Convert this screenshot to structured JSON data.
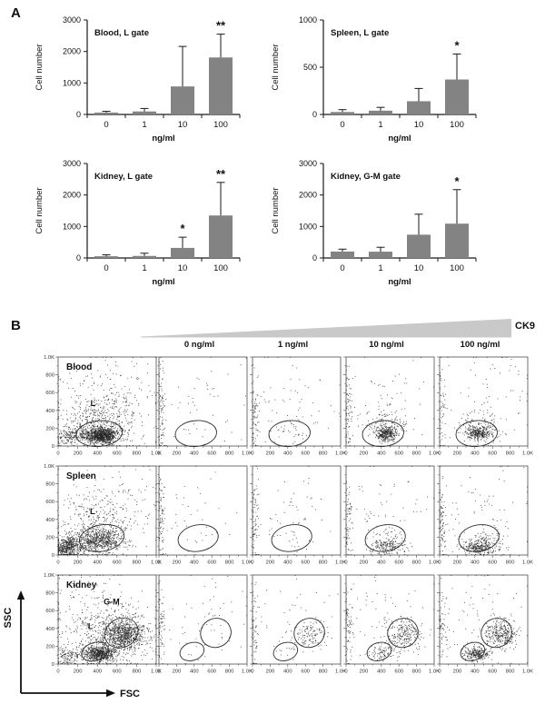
{
  "panel_a": {
    "label": "A"
  },
  "panel_b": {
    "label": "B",
    "gradient_label": "CK9"
  },
  "colors": {
    "bar": "#838383",
    "wedge": "#c9c9c9",
    "dot": "#262626",
    "frame": "#4d4d4d",
    "gate": "#2e2e2e",
    "axis": "#1a1a1a"
  },
  "chart_data": [
    {
      "id": "blood_l_gate",
      "type": "bar",
      "title": "Blood, L gate",
      "categories": [
        "0",
        "1",
        "10",
        "100"
      ],
      "values": [
        60,
        95,
        890,
        1810
      ],
      "errors": [
        40,
        95,
        1270,
        740
      ],
      "significance": [
        "",
        "",
        "",
        "**"
      ],
      "xlabel": "ng/ml",
      "ylabel": "Cell number",
      "ylim": [
        0,
        3000
      ],
      "yticks": [
        0,
        1000,
        2000,
        3000
      ]
    },
    {
      "id": "spleen_l_gate",
      "type": "bar",
      "title": "Spleen, L gate",
      "categories": [
        "0",
        "1",
        "10",
        "100"
      ],
      "values": [
        26,
        40,
        140,
        370
      ],
      "errors": [
        25,
        35,
        135,
        270
      ],
      "significance": [
        "",
        "",
        "",
        "*"
      ],
      "xlabel": "ng/ml",
      "ylabel": "Cell number",
      "ylim": [
        0,
        1000
      ],
      "yticks": [
        0,
        500,
        1000
      ]
    },
    {
      "id": "kidney_l_gate",
      "type": "bar",
      "title": "Kidney, L gate",
      "categories": [
        "0",
        "1",
        "10",
        "100"
      ],
      "values": [
        55,
        65,
        320,
        1350
      ],
      "errors": [
        45,
        85,
        340,
        1050
      ],
      "significance": [
        "",
        "",
        "*",
        "**"
      ],
      "xlabel": "ng/ml",
      "ylabel": "Cell number",
      "ylim": [
        0,
        3000
      ],
      "yticks": [
        0,
        1000,
        2000,
        3000
      ]
    },
    {
      "id": "kidney_gm_gate",
      "type": "bar",
      "title": "Kidney, G-M gate",
      "categories": [
        "0",
        "1",
        "10",
        "100"
      ],
      "values": [
        205,
        200,
        740,
        1090
      ],
      "errors": [
        75,
        140,
        650,
        1080
      ],
      "significance": [
        "",
        "",
        "",
        "*"
      ],
      "xlabel": "ng/ml",
      "ylabel": "Cell number",
      "ylim": [
        0,
        3000
      ],
      "yticks": [
        0,
        1000,
        2000,
        3000
      ]
    },
    {
      "id": "facs_dose_response",
      "type": "scatter",
      "title": "FSC/SSC dot plots at increasing CK9 dose",
      "xlabel": "FSC",
      "ylabel": "SSC",
      "col_headers": [
        "0  ng/ml",
        "1 ng/ml",
        "10 ng/ml",
        "100  ng/ml"
      ],
      "axis_range": [
        0,
        1000
      ],
      "tick_values": [
        0,
        200,
        400,
        600,
        800,
        1000
      ],
      "tick_labels": [
        "0",
        "200",
        "400",
        "600",
        "800",
        "1.0K"
      ],
      "rows": [
        {
          "label": "Blood",
          "gates": [
            {
              "label": "L",
              "cx": 420,
              "cy": 140,
              "rx": 235,
              "ry": 145,
              "rot": -5,
              "label_x": 355,
              "label_y": 450
            }
          ],
          "cells": [
            {
              "clusters": [
                [
                  450,
                  120,
                  80,
                  45,
                  900
                ],
                [
                  430,
                  270,
                  190,
                  150,
                  420
                ],
                [
                  250,
                  130,
                  120,
                  60,
                  180
                ],
                [
                  520,
                  520,
                  280,
                  270,
                  220
                ],
                [
                  90,
                  90,
                  60,
                  50,
                  90
                ]
              ]
            },
            {
              "clusters": [
                [
                  25,
                  300,
                  22,
                  200,
                  60
                ],
                [
                  25,
                  650,
                  25,
                  150,
                  25
                ],
                [
                  470,
                  520,
                  290,
                  270,
                  45
                ],
                [
                  470,
                  200,
                  120,
                  70,
                  8
                ]
              ]
            },
            {
              "clusters": [
                [
                  25,
                  350,
                  22,
                  220,
                  70
                ],
                [
                  420,
                  540,
                  280,
                  260,
                  55
                ],
                [
                  430,
                  180,
                  140,
                  80,
                  40
                ]
              ]
            },
            {
              "clusters": [
                [
                  25,
                  400,
                  22,
                  250,
                  70
                ],
                [
                  460,
                  480,
                  290,
                  250,
                  65
                ],
                [
                  450,
                  135,
                  60,
                  35,
                  300
                ],
                [
                  465,
                  210,
                  130,
                  90,
                  140
                ]
              ]
            },
            {
              "clusters": [
                [
                  25,
                  400,
                  22,
                  250,
                  60
                ],
                [
                  500,
                  520,
                  300,
                  270,
                  70
                ],
                [
                  435,
                  145,
                  62,
                  36,
                  280
                ],
                [
                  470,
                  215,
                  135,
                  90,
                  130
                ]
              ]
            }
          ]
        },
        {
          "label": "Spleen",
          "gates": [
            {
              "label": "L",
              "cx": 445,
              "cy": 190,
              "rx": 230,
              "ry": 148,
              "rot": -10,
              "label_x": 350,
              "label_y": 460
            }
          ],
          "cells": [
            {
              "clusters": [
                [
                  95,
                  85,
                  70,
                  60,
                  520
                ],
                [
                  420,
                  155,
                  110,
                  65,
                  620
                ],
                [
                  390,
                  310,
                  210,
                  160,
                  330
                ],
                [
                  560,
                  560,
                  280,
                  270,
                  140
                ]
              ]
            },
            {
              "clusters": [
                [
                  25,
                  300,
                  22,
                  200,
                  55
                ],
                [
                  25,
                  620,
                  26,
                  170,
                  28
                ],
                [
                  460,
                  520,
                  300,
                  270,
                  40
                ],
                [
                  480,
                  160,
                  140,
                  70,
                  8
                ]
              ]
            },
            {
              "clusters": [
                [
                  25,
                  360,
                  24,
                  230,
                  80
                ],
                [
                  420,
                  560,
                  280,
                  250,
                  45
                ],
                [
                  480,
                  150,
                  150,
                  70,
                  16
                ]
              ]
            },
            {
              "clusters": [
                [
                  25,
                  360,
                  24,
                  230,
                  65
                ],
                [
                  430,
                  560,
                  280,
                  250,
                  55
                ],
                [
                  470,
                  95,
                  100,
                  45,
                  170
                ],
                [
                  500,
                  170,
                  150,
                  70,
                  55
                ]
              ]
            },
            {
              "clusters": [
                [
                  25,
                  400,
                  24,
                  250,
                  85
                ],
                [
                  460,
                  560,
                  300,
                  250,
                  75
                ],
                [
                  450,
                  85,
                  95,
                  42,
                  280
                ],
                [
                  520,
                  160,
                  160,
                  70,
                  85
                ]
              ]
            }
          ]
        },
        {
          "label": "Kidney",
          "gates": [
            {
              "label": "L",
              "cx": 375,
              "cy": 140,
              "rx": 140,
              "ry": 100,
              "rot": -18,
              "label_x": 330,
              "label_y": 395
            },
            {
              "label": "G-M",
              "cx": 645,
              "cy": 350,
              "rx": 175,
              "ry": 162,
              "rot": -25,
              "label_x": 545,
              "label_y": 668
            }
          ],
          "cells": [
            {
              "clusters": [
                [
                  420,
                  115,
                  85,
                  48,
                  650
                ],
                [
                  675,
                  330,
                  110,
                  88,
                  800
                ],
                [
                  500,
                  310,
                  240,
                  180,
                  380
                ],
                [
                  470,
                  620,
                  280,
                  240,
                  180
                ],
                [
                  105,
                  95,
                  70,
                  60,
                  140
                ]
              ]
            },
            {
              "clusters": [
                [
                  25,
                  360,
                  24,
                  230,
                  65
                ],
                [
                  460,
                  560,
                  300,
                  260,
                  45
                ],
                [
                  650,
                  350,
                  120,
                  100,
                  12
                ],
                [
                  420,
                  150,
                  100,
                  60,
                  6
                ]
              ]
            },
            {
              "clusters": [
                [
                  25,
                  400,
                  24,
                  250,
                  55
                ],
                [
                  420,
                  560,
                  280,
                  250,
                  45
                ],
                [
                  670,
                  335,
                  90,
                  78,
                  120
                ],
                [
                  430,
                  145,
                  90,
                  50,
                  14
                ]
              ]
            },
            {
              "clusters": [
                [
                  25,
                  400,
                  24,
                  250,
                  70
                ],
                [
                  430,
                  560,
                  280,
                  250,
                  60
                ],
                [
                  662,
                  335,
                  95,
                  85,
                  220
                ],
                [
                  420,
                  130,
                  85,
                  50,
                  100
                ]
              ]
            },
            {
              "clusters": [
                [
                  25,
                  400,
                  24,
                  250,
                  60
                ],
                [
                  470,
                  560,
                  300,
                  260,
                  70
                ],
                [
                  690,
                  345,
                  95,
                  85,
                  320
                ],
                [
                  430,
                  112,
                  70,
                  38,
                  260
                ]
              ]
            }
          ]
        }
      ]
    }
  ]
}
